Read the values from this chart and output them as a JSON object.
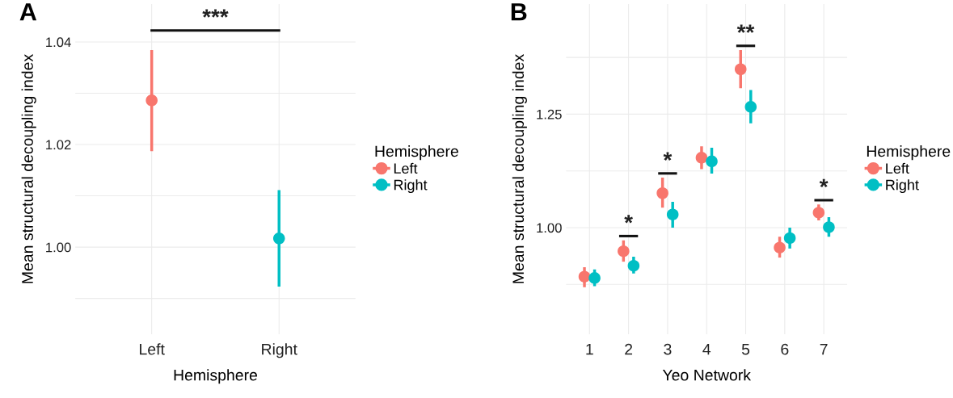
{
  "chart_data": [
    {
      "type": "scatter",
      "title": "A",
      "xlabel": "Hemisphere",
      "ylabel": "Mean structural decoupling index",
      "legend_title": "Hemisphere",
      "categories": [
        "Left",
        "Right"
      ],
      "series": [
        {
          "name": "Left",
          "color": "#f8766d",
          "values": [
            1.0286,
            null
          ],
          "errors": [
            [
              1.0187,
              1.0384
            ],
            null
          ]
        },
        {
          "name": "Right",
          "color": "#00bfc4",
          "values": [
            null,
            1.0017
          ],
          "errors": [
            null,
            [
              0.9923,
              1.0111
            ]
          ]
        }
      ],
      "ylim": [
        0.983,
        1.0474
      ],
      "yticks": [
        {
          "value": 0.99,
          "label": null
        },
        {
          "value": 1.0,
          "label": "1.00"
        },
        {
          "value": 1.01,
          "label": null
        },
        {
          "value": 1.02,
          "label": "1.02"
        },
        {
          "value": 1.03,
          "label": null
        },
        {
          "value": 1.04,
          "label": "1.04"
        }
      ],
      "annotations": [
        "***"
      ],
      "grid": true,
      "legend": "right",
      "marker": "circle"
    },
    {
      "type": "scatter",
      "title": "B",
      "xlabel": "Yeo Network",
      "ylabel": "Mean structural decoupling index",
      "legend_title": "Hemisphere",
      "categories": [
        "1",
        "2",
        "3",
        "4",
        "5",
        "6",
        "7"
      ],
      "series": [
        {
          "name": "Left",
          "color": "#f8766d",
          "values": [
            0.892,
            0.948,
            1.076,
            1.154,
            1.349,
            0.956,
            1.033
          ],
          "errors": [
            [
              0.869,
              0.913
            ],
            [
              0.925,
              0.972
            ],
            [
              1.044,
              1.11
            ],
            [
              1.129,
              1.179
            ],
            [
              1.307,
              1.391
            ],
            [
              0.934,
              0.98
            ],
            [
              1.016,
              1.051
            ]
          ]
        },
        {
          "name": "Right",
          "color": "#00bfc4",
          "values": [
            0.889,
            0.916,
            1.029,
            1.146,
            1.266,
            0.977,
            1.001
          ],
          "errors": [
            [
              0.871,
              0.908
            ],
            [
              0.899,
              0.936
            ],
            [
              1.0,
              1.057
            ],
            [
              1.119,
              1.176
            ],
            [
              1.23,
              1.303
            ],
            [
              0.954,
              1.0
            ],
            [
              0.98,
              1.023
            ]
          ]
        }
      ],
      "ylim": [
        0.765,
        1.4927
      ],
      "yticks": [
        {
          "value": 0.875,
          "label": null
        },
        {
          "value": 1.0,
          "label": "1.00"
        },
        {
          "value": 1.125,
          "label": null
        },
        {
          "value": 1.25,
          "label": "1.25"
        },
        {
          "value": 1.375,
          "label": null
        }
      ],
      "annotations": [
        "*",
        "*",
        "**",
        "*"
      ],
      "grid": true,
      "legend": "right",
      "marker": "circle"
    }
  ]
}
